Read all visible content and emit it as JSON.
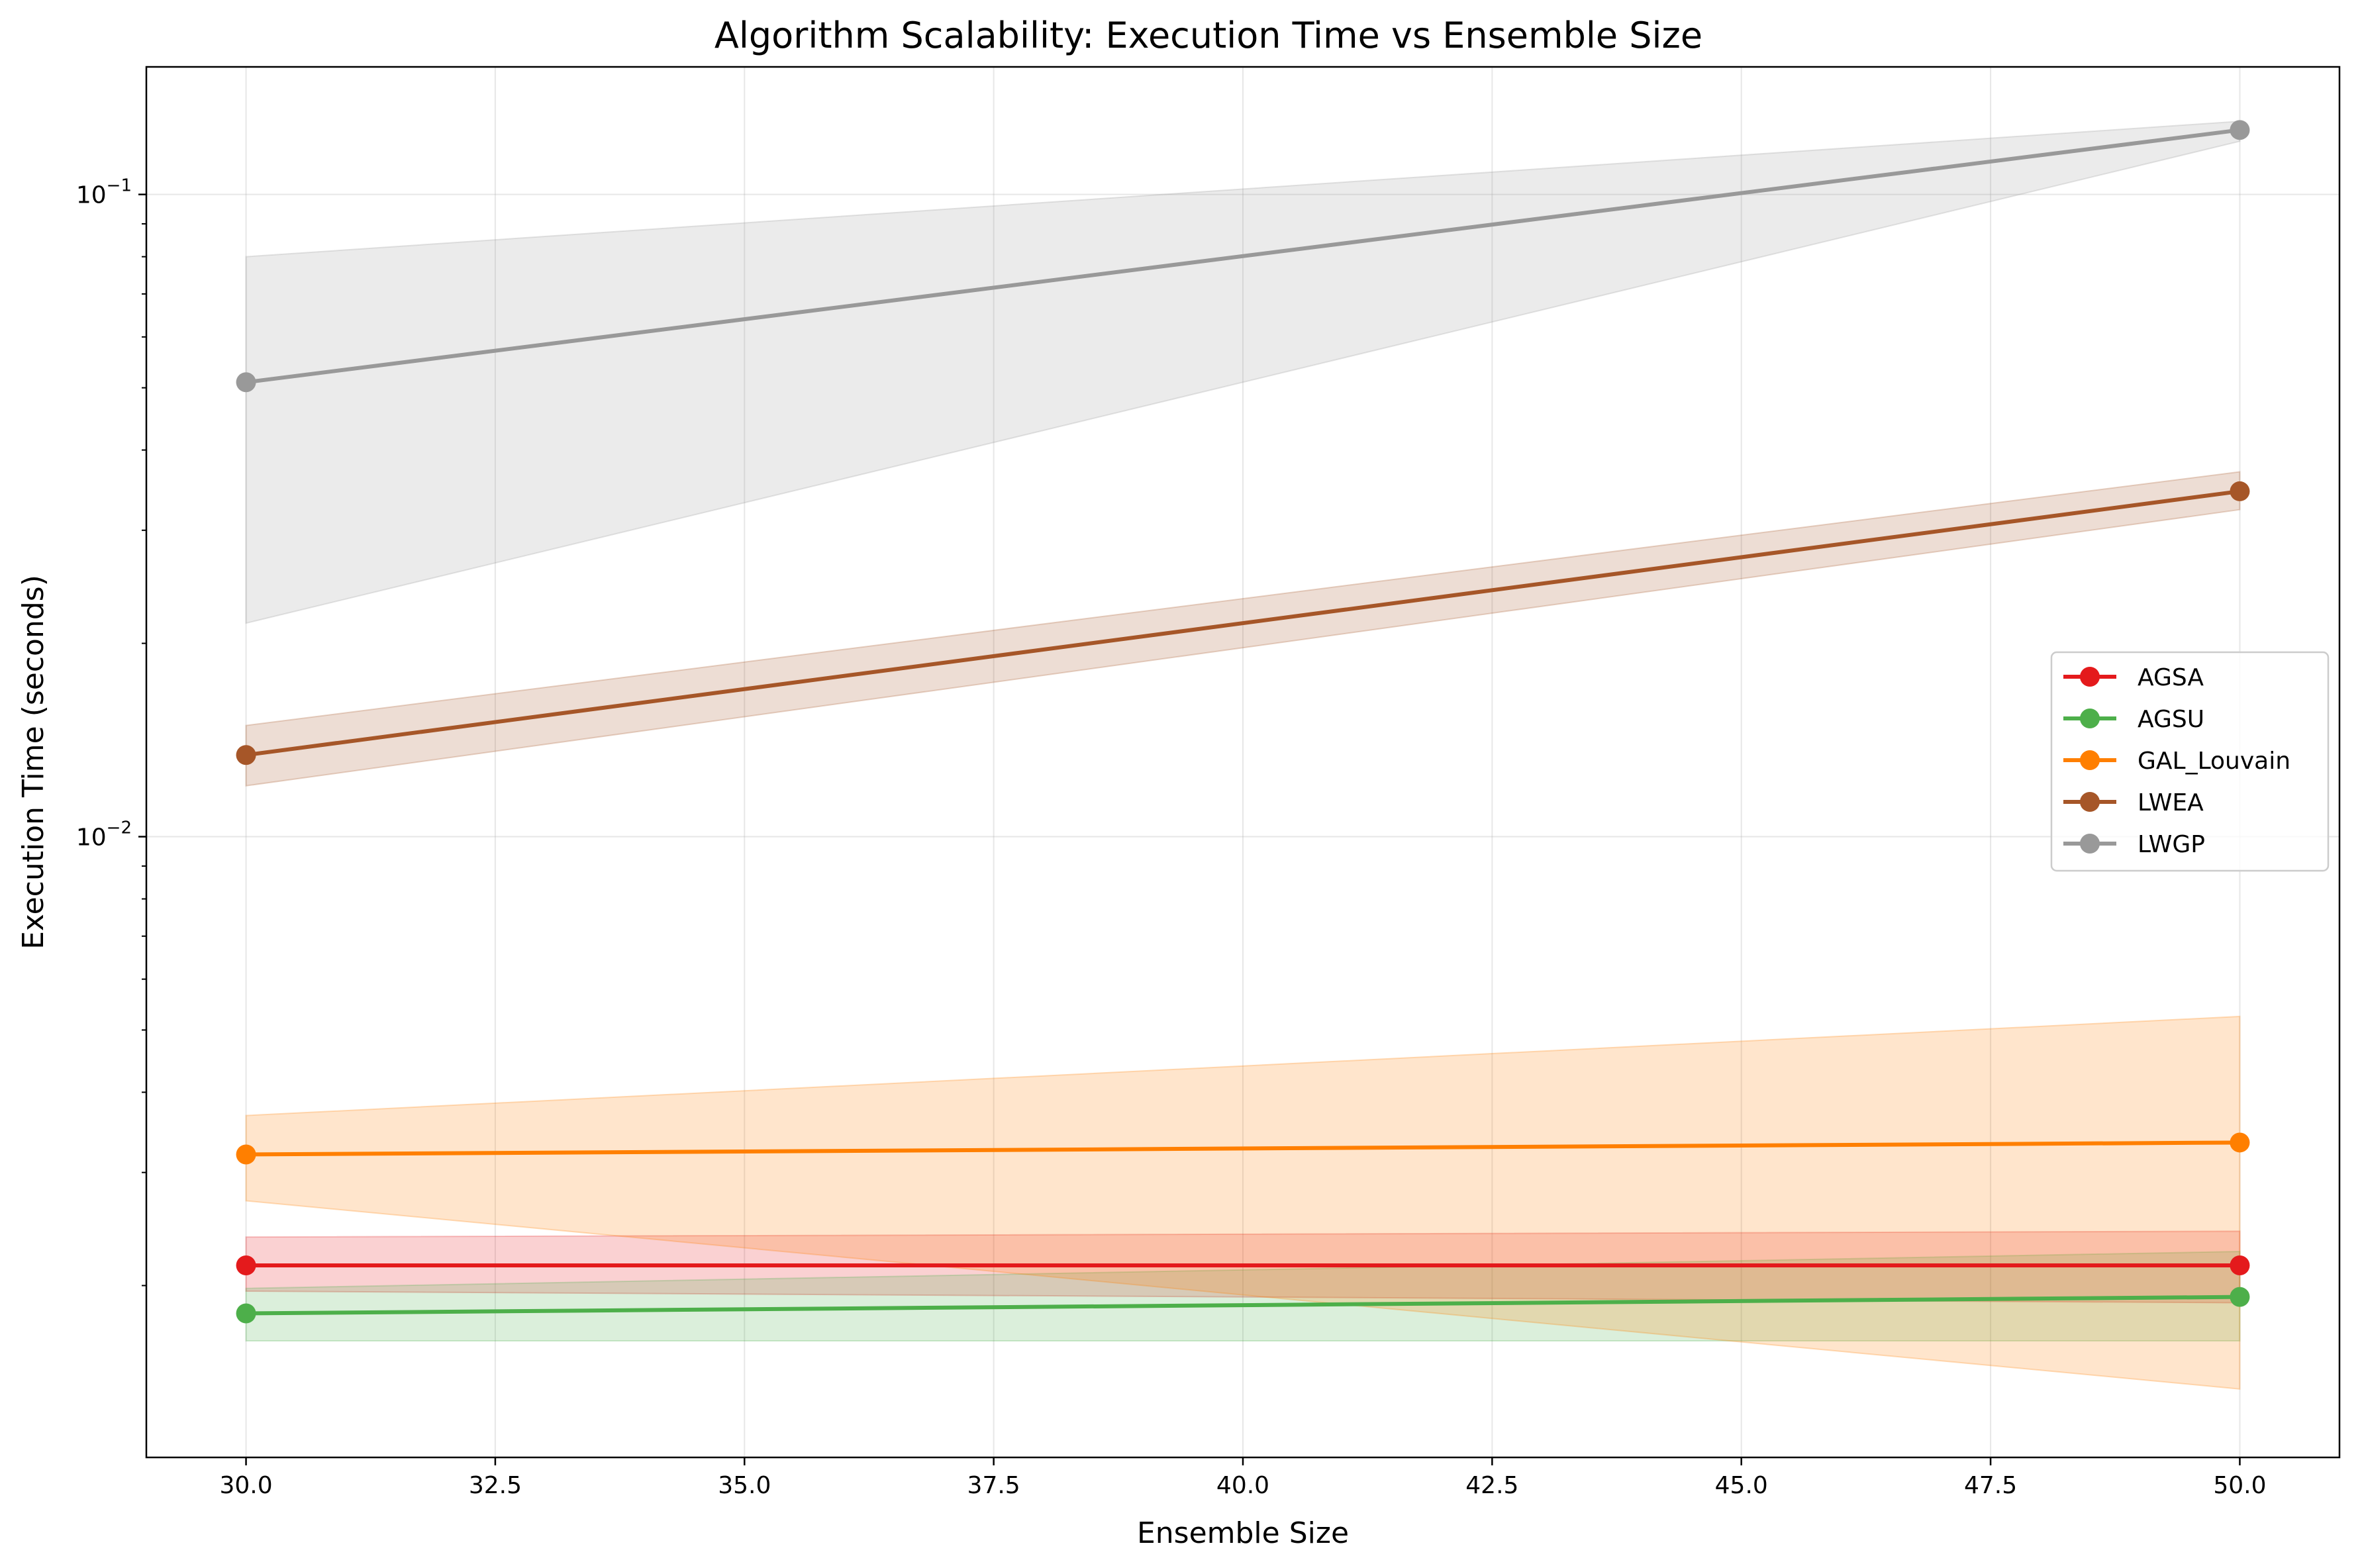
{
  "chart_data": {
    "type": "line",
    "title": "Algorithm Scalability: Execution Time vs Ensemble Size",
    "xlabel": "Ensemble Size",
    "ylabel": "Execution Time (seconds)",
    "xlim": [
      29,
      51
    ],
    "ylim": [
      0.00108,
      0.158
    ],
    "yscale": "log",
    "grid": true,
    "legend_position": "center-right",
    "x_ticks": [
      30.0,
      32.5,
      35.0,
      37.5,
      40.0,
      42.5,
      45.0,
      47.5,
      50.0
    ],
    "x_tick_labels": [
      "30.0",
      "32.5",
      "35.0",
      "37.5",
      "40.0",
      "42.5",
      "45.0",
      "47.5",
      "50.0"
    ],
    "y_ticks": [
      0.01,
      0.1
    ],
    "y_tick_labels": [
      {
        "base": "10",
        "exp": "−2"
      },
      {
        "base": "10",
        "exp": "−1"
      }
    ],
    "x": [
      30,
      50
    ],
    "series": [
      {
        "name": "AGSA",
        "color": "#e41a1c",
        "values": [
          0.00215,
          0.00215
        ],
        "lower": [
          0.00196,
          0.00188
        ],
        "upper": [
          0.00238,
          0.00243
        ]
      },
      {
        "name": "AGSU",
        "color": "#4daf4a",
        "values": [
          0.00181,
          0.00192
        ],
        "lower": [
          0.00164,
          0.00164
        ],
        "upper": [
          0.00198,
          0.00226
        ]
      },
      {
        "name": "GAL_Louvain",
        "color": "#ff7f00",
        "values": [
          0.0032,
          0.00334
        ],
        "lower": [
          0.00271,
          0.00138
        ],
        "upper": [
          0.00368,
          0.00525
        ]
      },
      {
        "name": "LWEA",
        "color": "#a65628",
        "values": [
          0.0134,
          0.0345
        ],
        "lower": [
          0.012,
          0.0323
        ],
        "upper": [
          0.0149,
          0.037
        ]
      },
      {
        "name": "LWGP",
        "color": "#999999",
        "values": [
          0.051,
          0.126
        ],
        "lower": [
          0.0215,
          0.121
        ],
        "upper": [
          0.08,
          0.13
        ]
      }
    ]
  }
}
